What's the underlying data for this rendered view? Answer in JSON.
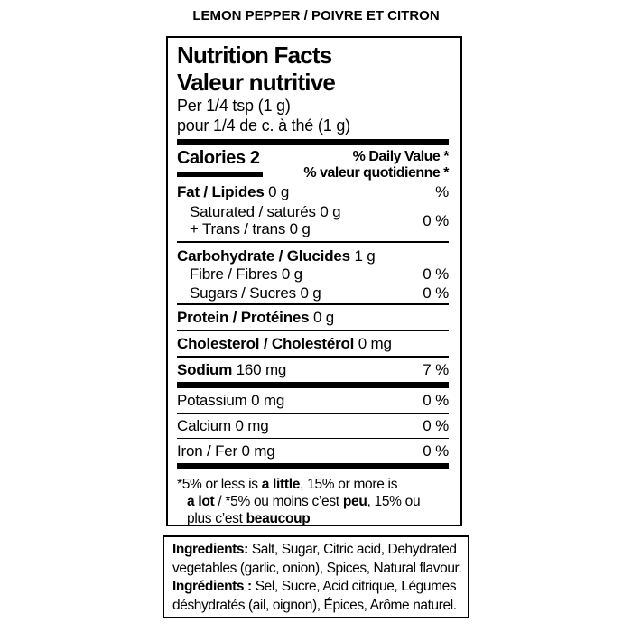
{
  "product": {
    "title": "LEMON PEPPER / POIVRE ET CITRON"
  },
  "panel": {
    "title_en": "Nutrition Facts",
    "title_fr": "Valeur nutritive",
    "serving_en": "Per 1/4 tsp (1 g)",
    "serving_fr": "pour 1/4 de c. à thé (1 g)",
    "calories_label": "Calories",
    "calories_value": "2",
    "daily_value_en": "% Daily Value *",
    "daily_value_fr": "% valeur quotidienne *",
    "rows": {
      "fat": {
        "label": "Fat / Lipides",
        "value": "0 g",
        "dv": "%"
      },
      "sat_line1": "Saturated / saturés 0 g",
      "sat_line2": "+ Trans / trans 0 g",
      "sat_dv": "0 %",
      "carb": {
        "label": "Carbohydrate / Glucides",
        "value": "1 g",
        "dv": ""
      },
      "fibre": {
        "label": "Fibre / Fibres 0 g",
        "dv": "0 %"
      },
      "sugars": {
        "label": "Sugars / Sucres 0 g",
        "dv": "0 %"
      },
      "protein": {
        "label": "Protein / Protéines",
        "value": "0 g",
        "dv": ""
      },
      "cholesterol": {
        "label": "Cholesterol / Cholestérol",
        "value": "0 mg",
        "dv": ""
      },
      "sodium": {
        "label": "Sodium",
        "value": "160 mg",
        "dv": "7 %"
      },
      "potassium": {
        "label": "Potassium 0 mg",
        "dv": "0 %"
      },
      "calcium": {
        "label": "Calcium 0 mg",
        "dv": "0 %"
      },
      "iron": {
        "label": "Iron / Fer 0 mg",
        "dv": "0 %"
      }
    },
    "footnote": {
      "l1_pre": "*5% or less is",
      "l1_bold": "a little",
      "l1_post": ", 15% or more is",
      "l2_bold1": "a lot",
      "l2_mid": "/ *5% ou moins c’est",
      "l2_bold2": "peu",
      "l2_post": ", 15% ou",
      "l3_pre": "plus c’est",
      "l3_bold": "beaucoup"
    }
  },
  "ingredients": {
    "l1_bold": "Ingredients:",
    "l1_text": "Salt, Sugar, Citric acid, Dehydrated",
    "l2_text": "vegetables (garlic, onion), Spices, Natural flavour.",
    "l3_bold": "Ingrédients :",
    "l3_text": "Sel, Sucre, Acid citrique, Légumes",
    "l4_text": "déshydratés (ail, oignon), Épices, Arôme naturel."
  },
  "colors": {
    "ink": "#000000",
    "paper": "#ffffff"
  }
}
